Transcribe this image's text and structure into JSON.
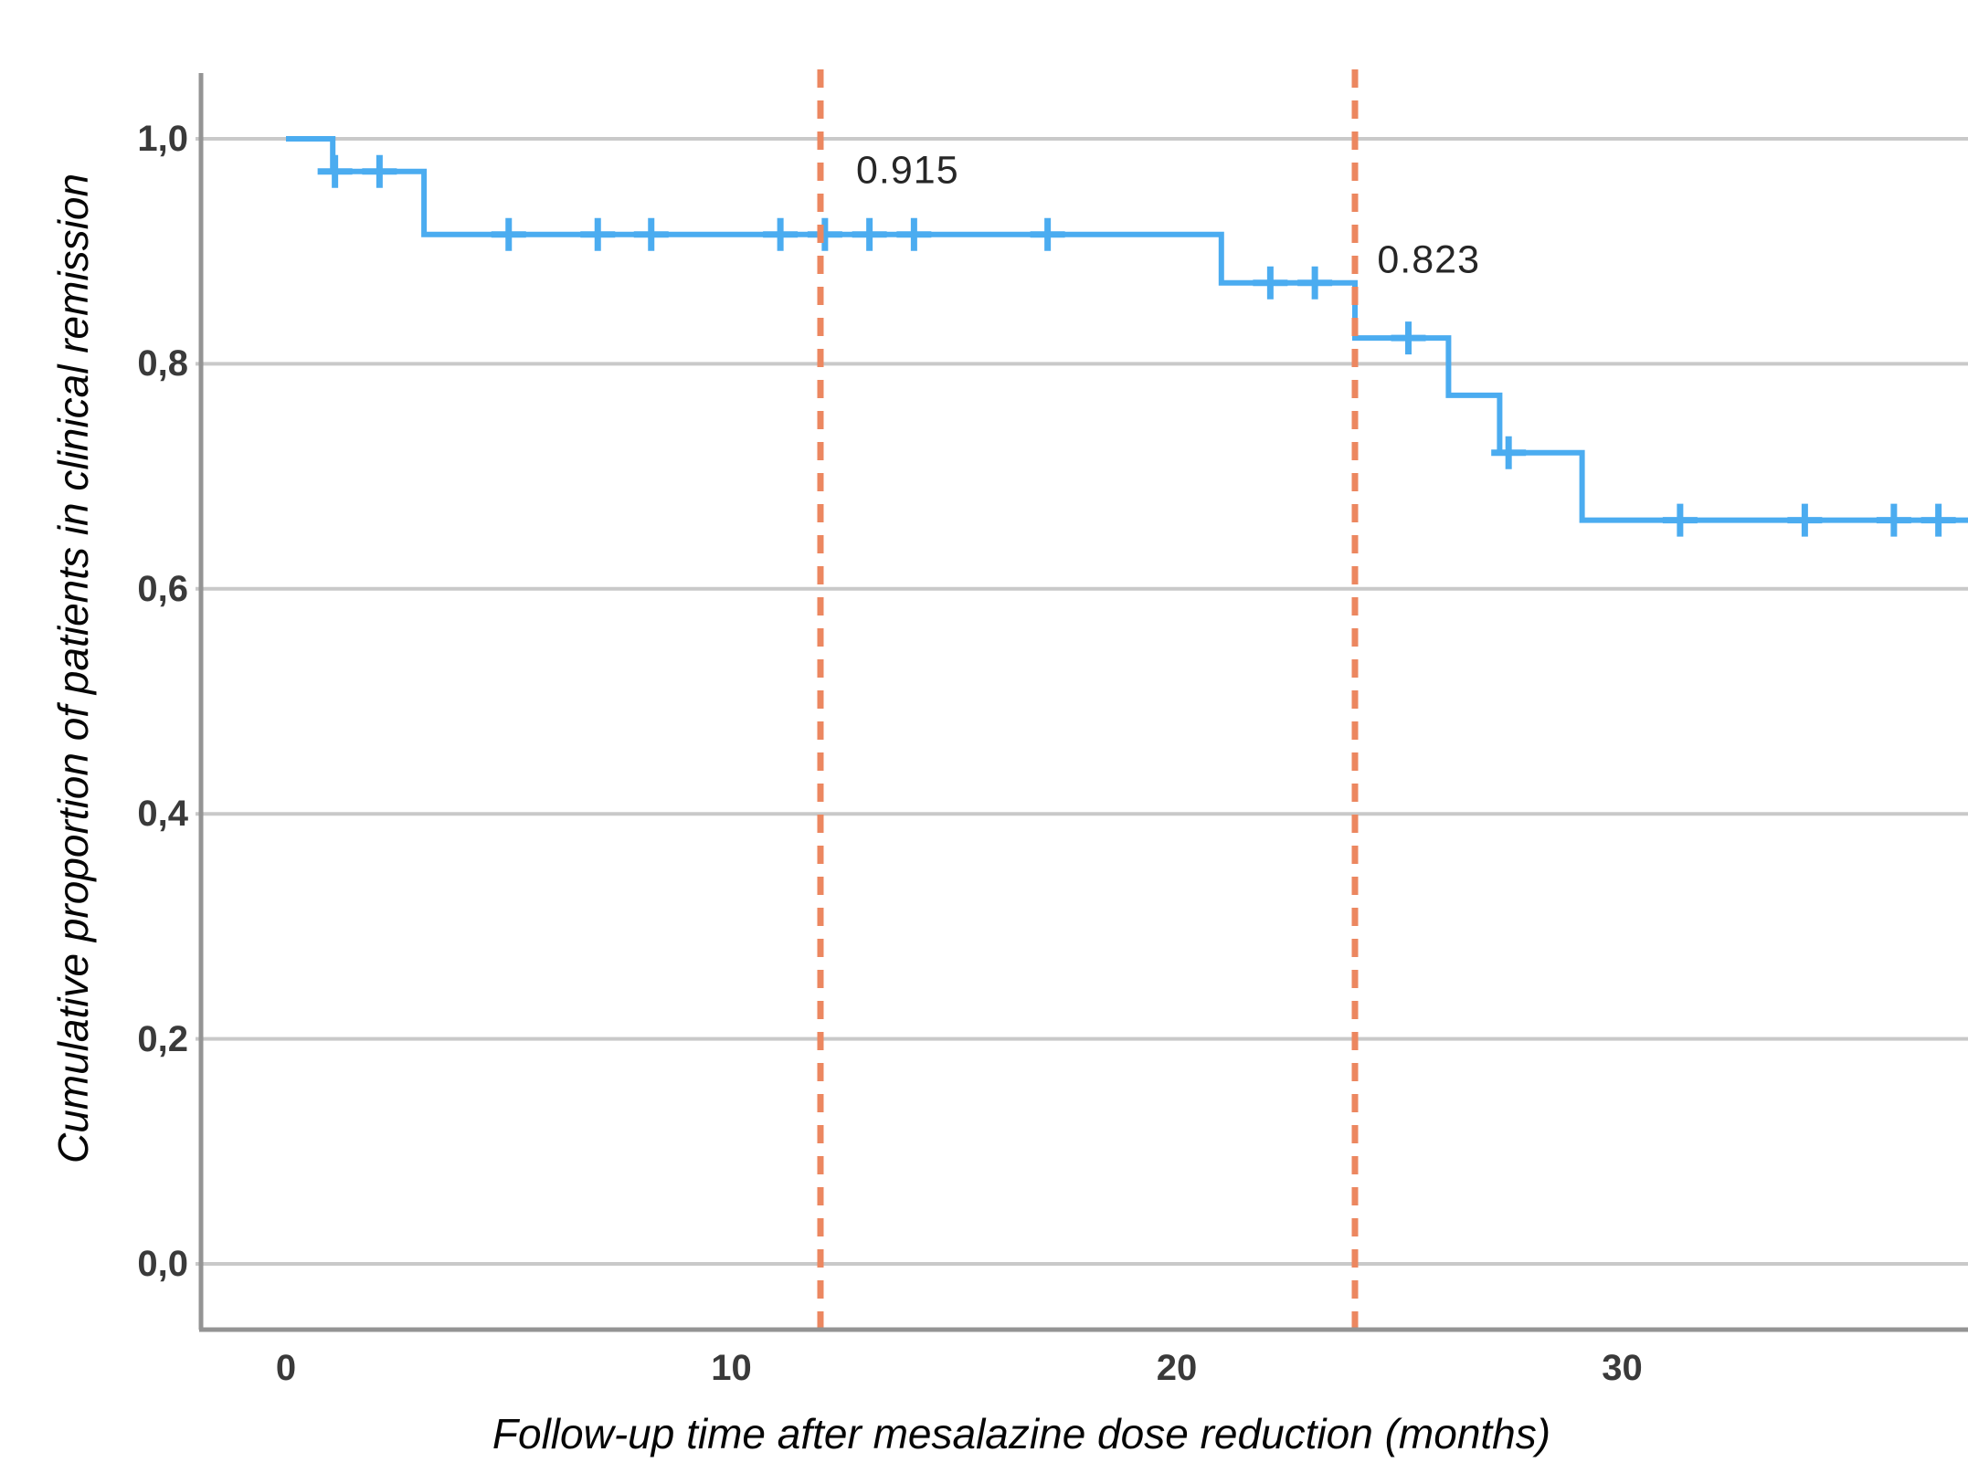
{
  "chart_data": {
    "type": "line",
    "chart_style": "kaplan-meier-step-curve",
    "title": "",
    "xlabel": "Follow-up time after mesalazine dose reduction (months)",
    "ylabel": "Cumulative proportion of patients in clinical remission",
    "x_tick_values": [
      0,
      10,
      20,
      30
    ],
    "x_tick_labels": [
      "0",
      "10",
      "20",
      "30"
    ],
    "y_tick_values": [
      1.0,
      0.8,
      0.6,
      0.4,
      0.2,
      0.0
    ],
    "y_tick_labels": [
      "1,0",
      "0,8",
      "0,6",
      "0,4",
      "0,2",
      "0,0"
    ],
    "xlim": [
      -1.9,
      37.9
    ],
    "ylim": [
      -0.06,
      1.06
    ],
    "grid": "horizontal-only",
    "legend": "none",
    "series": [
      {
        "name": "cumulative-remission-proportion",
        "color": "#4bacf0",
        "step_points": [
          [
            0,
            1.0
          ],
          [
            1.05,
            1.0
          ],
          [
            1.05,
            0.971
          ],
          [
            3.1,
            0.971
          ],
          [
            3.1,
            0.915
          ],
          [
            21.0,
            0.915
          ],
          [
            21.0,
            0.872
          ],
          [
            24.0,
            0.872
          ],
          [
            24.0,
            0.823
          ],
          [
            26.1,
            0.823
          ],
          [
            26.1,
            0.772
          ],
          [
            27.25,
            0.772
          ],
          [
            27.25,
            0.721
          ],
          [
            29.1,
            0.721
          ],
          [
            29.1,
            0.661
          ],
          [
            38.0,
            0.661
          ]
        ],
        "censor_marks": [
          [
            1.1,
            0.971
          ],
          [
            2.1,
            0.971
          ],
          [
            5.0,
            0.915
          ],
          [
            7.0,
            0.915
          ],
          [
            8.2,
            0.915
          ],
          [
            11.1,
            0.915
          ],
          [
            12.1,
            0.915
          ],
          [
            13.1,
            0.915
          ],
          [
            14.1,
            0.915
          ],
          [
            17.1,
            0.915
          ],
          [
            22.1,
            0.872
          ],
          [
            23.1,
            0.872
          ],
          [
            25.2,
            0.823
          ],
          [
            27.45,
            0.721
          ],
          [
            31.3,
            0.661
          ],
          [
            34.1,
            0.661
          ],
          [
            36.1,
            0.661
          ],
          [
            37.1,
            0.661
          ]
        ]
      }
    ],
    "reference_lines": [
      {
        "axis": "x",
        "value": 12,
        "style": "dashed",
        "color": "#ec8760"
      },
      {
        "axis": "x",
        "value": 24,
        "style": "dashed",
        "color": "#ec8760"
      }
    ],
    "annotations": [
      {
        "text": "0.915",
        "x": 12.8,
        "y": 0.9715,
        "align": "left"
      },
      {
        "text": "0.823",
        "x": 24.5,
        "y": 0.892,
        "align": "left"
      }
    ],
    "colors": {
      "curve": "#4bacf0",
      "censor_mark": "#4bacf0",
      "reference_line": "#ec8760",
      "gridline": "#c9c9c9",
      "axis_line": "#949494",
      "tick_label": "#3a3a3a",
      "axis_title": "#060606",
      "annotation": "#262626",
      "background": "#ffffff"
    }
  }
}
